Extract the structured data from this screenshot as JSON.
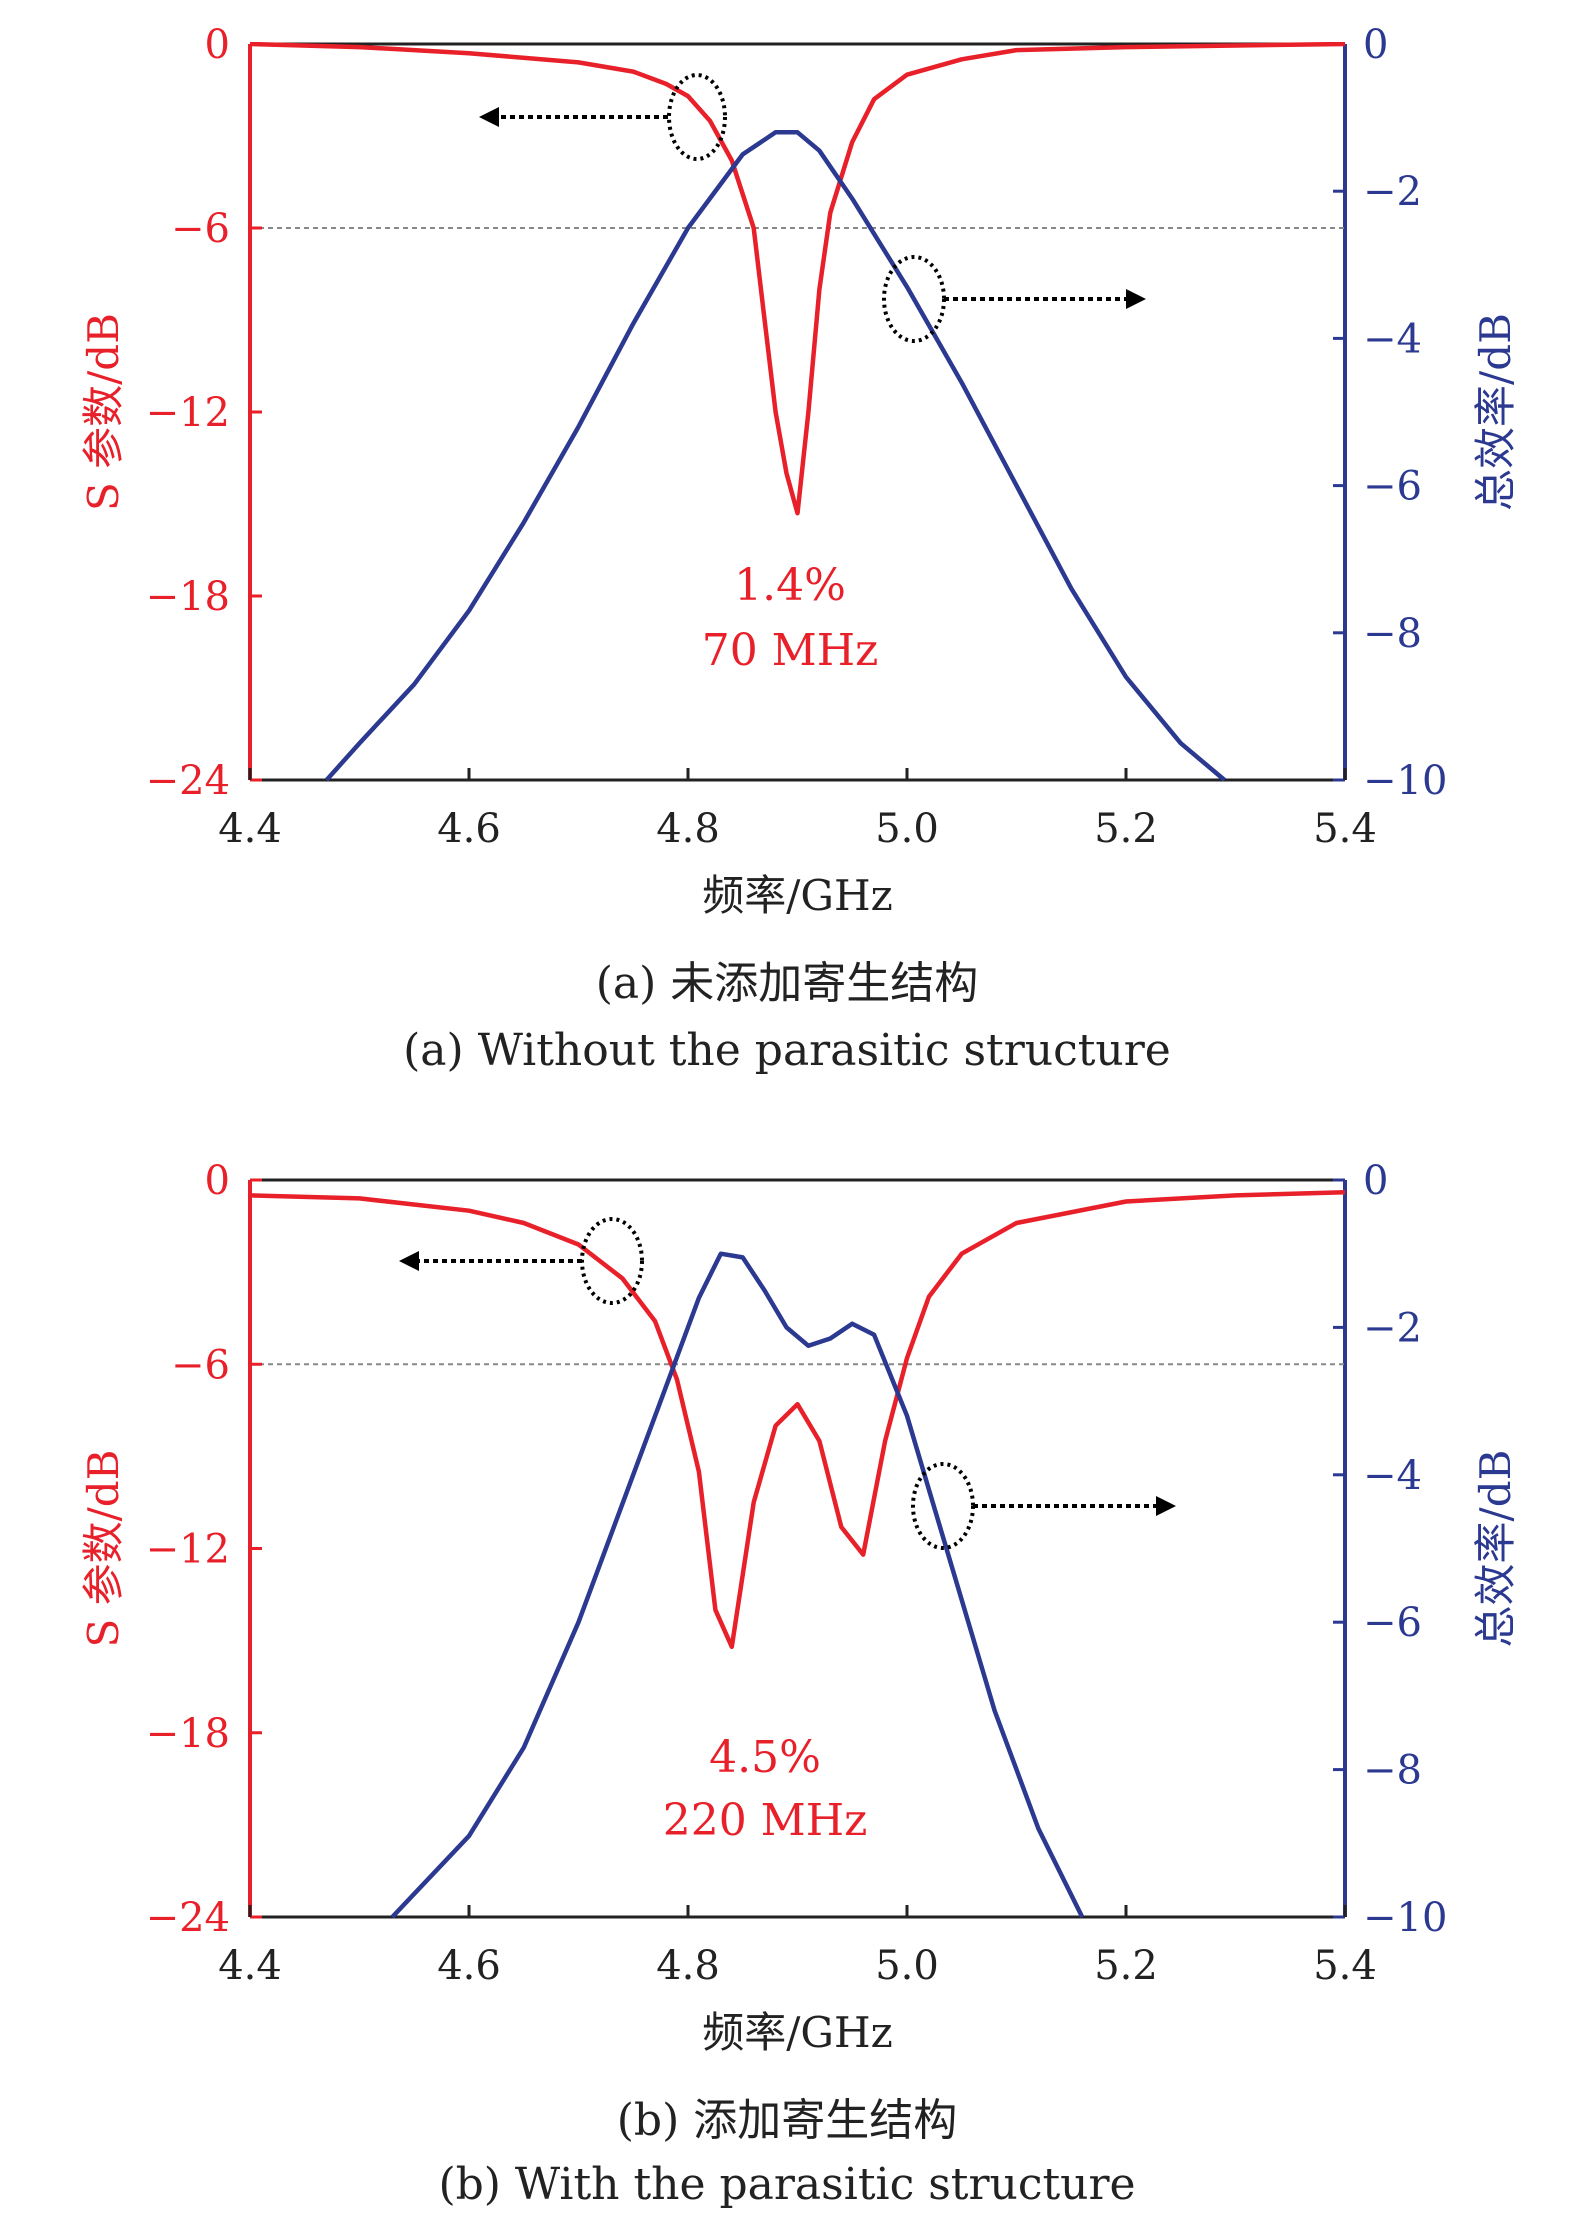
{
  "chart_data": [
    {
      "type": "line",
      "caption_cn": "(a) 未添加寄生结构",
      "caption_en": "(a) Without the parasitic structure",
      "xlabel": "频率/GHz",
      "ylabel_left": "S 参数/dB",
      "ylabel_right": "总效率/dB",
      "xlim": [
        4.4,
        5.4
      ],
      "xticks": [
        "4.4",
        "4.6",
        "4.8",
        "5.0",
        "5.2",
        "5.4"
      ],
      "ylim_left": [
        -24,
        0
      ],
      "yticks_left": [
        "0",
        "−6",
        "−12",
        "−18",
        "−24"
      ],
      "ylim_right": [
        -10,
        0
      ],
      "yticks_right": [
        "0",
        "−2",
        "−4",
        "−6",
        "−8",
        "−10"
      ],
      "reference_line_left": -6,
      "annotation": [
        "1.4%",
        "70 MHz"
      ],
      "series": [
        {
          "axis": "left",
          "color": "#e8202a",
          "points": [
            [
              4.4,
              0
            ],
            [
              4.5,
              -0.1
            ],
            [
              4.6,
              -0.3
            ],
            [
              4.7,
              -0.6
            ],
            [
              4.75,
              -0.9
            ],
            [
              4.78,
              -1.3
            ],
            [
              4.8,
              -1.7
            ],
            [
              4.82,
              -2.5
            ],
            [
              4.84,
              -3.8
            ],
            [
              4.86,
              -6
            ],
            [
              4.87,
              -9
            ],
            [
              4.88,
              -12
            ],
            [
              4.89,
              -14
            ],
            [
              4.9,
              -15.3
            ],
            [
              4.91,
              -12
            ],
            [
              4.92,
              -8
            ],
            [
              4.93,
              -5.5
            ],
            [
              4.95,
              -3.2
            ],
            [
              4.97,
              -1.8
            ],
            [
              5.0,
              -1.0
            ],
            [
              5.05,
              -0.5
            ],
            [
              5.1,
              -0.2
            ],
            [
              5.2,
              -0.1
            ],
            [
              5.4,
              0
            ]
          ]
        },
        {
          "axis": "right",
          "color": "#2b3990",
          "points": [
            [
              4.47,
              -10
            ],
            [
              4.5,
              -9.5
            ],
            [
              4.55,
              -8.7
            ],
            [
              4.6,
              -7.7
            ],
            [
              4.65,
              -6.5
            ],
            [
              4.7,
              -5.2
            ],
            [
              4.75,
              -3.8
            ],
            [
              4.8,
              -2.5
            ],
            [
              4.85,
              -1.5
            ],
            [
              4.88,
              -1.2
            ],
            [
              4.9,
              -1.2
            ],
            [
              4.92,
              -1.45
            ],
            [
              4.95,
              -2.1
            ],
            [
              5.0,
              -3.3
            ],
            [
              5.05,
              -4.6
            ],
            [
              5.1,
              -6.0
            ],
            [
              5.15,
              -7.4
            ],
            [
              5.2,
              -8.6
            ],
            [
              5.25,
              -9.5
            ],
            [
              5.29,
              -10
            ]
          ]
        }
      ]
    },
    {
      "type": "line",
      "caption_cn": "(b) 添加寄生结构",
      "caption_en": "(b) With the parasitic structure",
      "xlabel": "频率/GHz",
      "ylabel_left": "S 参数/dB",
      "ylabel_right": "总效率/dB",
      "xlim": [
        4.4,
        5.4
      ],
      "xticks": [
        "4.4",
        "4.6",
        "4.8",
        "5.0",
        "5.2",
        "5.4"
      ],
      "ylim_left": [
        -24,
        0
      ],
      "yticks_left": [
        "0",
        "−6",
        "−12",
        "−18",
        "−24"
      ],
      "ylim_right": [
        -10,
        0
      ],
      "yticks_right": [
        "0",
        "−2",
        "−4",
        "−6",
        "−8",
        "−10"
      ],
      "reference_line_left": -6,
      "annotation": [
        "4.5%",
        "220 MHz"
      ],
      "series": [
        {
          "axis": "left",
          "color": "#e8202a",
          "points": [
            [
              4.4,
              -0.5
            ],
            [
              4.5,
              -0.6
            ],
            [
              4.6,
              -1.0
            ],
            [
              4.65,
              -1.4
            ],
            [
              4.7,
              -2.1
            ],
            [
              4.74,
              -3.2
            ],
            [
              4.77,
              -4.6
            ],
            [
              4.79,
              -6.5
            ],
            [
              4.81,
              -9.5
            ],
            [
              4.825,
              -14
            ],
            [
              4.84,
              -15.2
            ],
            [
              4.86,
              -10.5
            ],
            [
              4.88,
              -8
            ],
            [
              4.9,
              -7.3
            ],
            [
              4.92,
              -8.5
            ],
            [
              4.94,
              -11.3
            ],
            [
              4.96,
              -12.2
            ],
            [
              4.98,
              -8.5
            ],
            [
              5.0,
              -5.8
            ],
            [
              5.02,
              -3.8
            ],
            [
              5.05,
              -2.4
            ],
            [
              5.1,
              -1.4
            ],
            [
              5.2,
              -0.7
            ],
            [
              5.3,
              -0.5
            ],
            [
              5.4,
              -0.4
            ]
          ]
        },
        {
          "axis": "right",
          "color": "#2b3990",
          "points": [
            [
              4.53,
              -10
            ],
            [
              4.6,
              -8.9
            ],
            [
              4.65,
              -7.7
            ],
            [
              4.7,
              -6.0
            ],
            [
              4.75,
              -4.0
            ],
            [
              4.78,
              -2.8
            ],
            [
              4.81,
              -1.6
            ],
            [
              4.83,
              -1.0
            ],
            [
              4.85,
              -1.05
            ],
            [
              4.87,
              -1.5
            ],
            [
              4.89,
              -2.0
            ],
            [
              4.91,
              -2.25
            ],
            [
              4.93,
              -2.15
            ],
            [
              4.95,
              -1.95
            ],
            [
              4.97,
              -2.1
            ],
            [
              5.0,
              -3.2
            ],
            [
              5.04,
              -5.2
            ],
            [
              5.08,
              -7.2
            ],
            [
              5.12,
              -8.8
            ],
            [
              5.16,
              -10
            ]
          ]
        }
      ]
    }
  ]
}
